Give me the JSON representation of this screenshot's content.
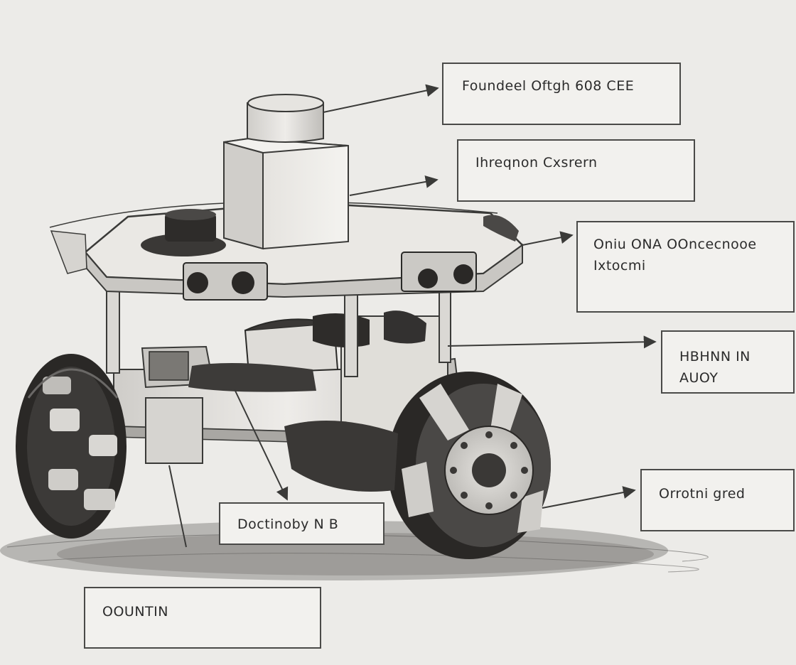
{
  "diagram": {
    "labels": [
      {
        "id": "top",
        "text": "Foundeel Oftgh 608 CEE"
      },
      {
        "id": "box",
        "text": "Ihreqnon Cxsrern"
      },
      {
        "id": "deck",
        "text": "Oniu ONA OOncecnooe\nIxtocmi"
      },
      {
        "id": "battery",
        "text": "HBHNN IN AUOY"
      },
      {
        "id": "wheel",
        "text": "Orrotni gred"
      },
      {
        "id": "chassis",
        "text": "Doctinoby N B"
      },
      {
        "id": "base",
        "text": "OOUNTIN"
      }
    ],
    "colors": {
      "paper": "#ecebe8",
      "ink": "#3a3a38",
      "light_metal": "#dcdad6",
      "dark_rubber": "#2a2a28",
      "shadow": "#8a8884"
    }
  }
}
